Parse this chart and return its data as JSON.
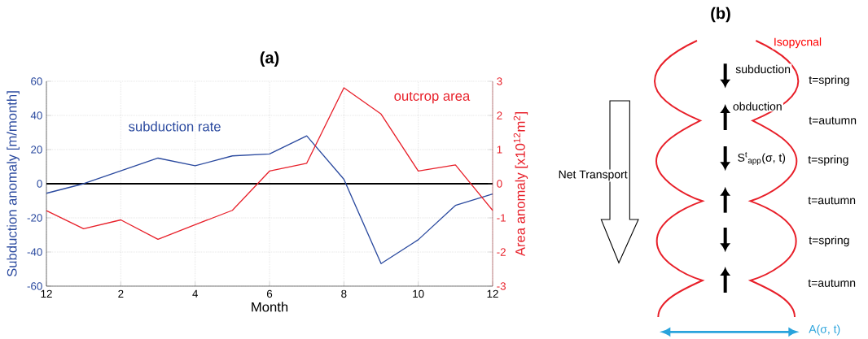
{
  "chart_data": [
    {
      "type": "line",
      "title": "(a)",
      "xlabel": "Month",
      "ylabel": "Subduction anomaly [m/month]",
      "y2label": "Area anomaly  [x10$^{12}$m$^{2}$]",
      "categories": [
        "12",
        null,
        "2",
        null,
        "4",
        null,
        "6",
        null,
        "8",
        null,
        "10",
        null,
        "12"
      ],
      "ylim": [
        -60,
        60
      ],
      "yticks": [
        -60,
        -40,
        -20,
        0,
        20,
        40,
        60
      ],
      "y2lim": [
        -3,
        3
      ],
      "y2ticks": [
        -3,
        -2,
        -1,
        0,
        1,
        2,
        3
      ],
      "grid": true,
      "series": [
        {
          "name": "subduction rate",
          "color": "#2b4a9f",
          "values": [
            -5.6,
            0,
            7.5,
            15,
            10.5,
            16.3,
            17.4,
            28,
            2.6,
            -46.8,
            -32.8,
            -12.7,
            -6
          ]
        },
        {
          "name": "outcrop area",
          "color": "#e8202a",
          "axis": "y2",
          "values": [
            -0.79,
            -1.32,
            -1.06,
            -1.63,
            -1.2,
            -0.78,
            0.37,
            0.6,
            2.81,
            2.04,
            0.37,
            0.55,
            -0.78
          ]
        }
      ],
      "ref_lines": [
        {
          "axis": "y",
          "value": 0,
          "color": "#000000"
        }
      ]
    },
    {
      "type": "other",
      "title": "(b)",
      "annotations": [
        "Isopycnal",
        "subduction",
        "t=spring",
        "obduction",
        "t=autumn",
        "S$^{t}$$_{app}$(σ, t)",
        "t=spring",
        "t=autumn",
        "t=spring",
        "t=autumn",
        "Net Transport",
        "A(σ, t)"
      ]
    }
  ]
}
